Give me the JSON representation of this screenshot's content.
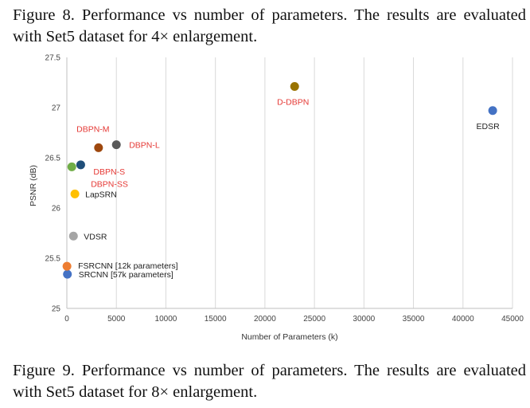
{
  "captions": {
    "top": "Figure 8. Performance vs number of parameters.  The results are evaluated with Set5 dataset for 4× enlargement.",
    "bottom": "Figure 9. Performance vs number of parameters.  The results are evaluated with Set5 dataset for 8× enlargement."
  },
  "chart_data": {
    "type": "scatter",
    "title": "",
    "xlabel": "Number of Parameters (k)",
    "ylabel": "PSNR (dB)",
    "xlim": [
      0,
      45000
    ],
    "ylim": [
      25,
      27.5
    ],
    "x_ticks": [
      "0",
      "5000",
      "10000",
      "15000",
      "20000",
      "25000",
      "30000",
      "35000",
      "40000",
      "45000"
    ],
    "y_ticks": [
      "25",
      "25.5",
      "26",
      "26.5",
      "27",
      "27.5"
    ],
    "grid": "vertical",
    "points": [
      {
        "label": "SRCNN [57k parameters]",
        "x": 57,
        "y": 25.34,
        "color": "#4472c4",
        "label_color": "#222222"
      },
      {
        "label": "FSRCNN [12k parameters]",
        "x": 12,
        "y": 25.42,
        "color": "#ed7d31",
        "label_color": "#222222"
      },
      {
        "label": "VDSR",
        "x": 665,
        "y": 25.72,
        "color": "#a5a5a5",
        "label_color": "#222222"
      },
      {
        "label": "LapSRN",
        "x": 813,
        "y": 26.14,
        "color": "#ffc000",
        "label_color": "#222222"
      },
      {
        "label": "DBPN-SS",
        "x": 500,
        "y": 26.41,
        "color": "#70ad47",
        "label_color": "#e53935"
      },
      {
        "label": "DBPN-S",
        "x": 1400,
        "y": 26.43,
        "color": "#1f4e79",
        "label_color": "#e53935"
      },
      {
        "label": "DBPN-M",
        "x": 3200,
        "y": 26.6,
        "color": "#9e480e",
        "label_color": "#e53935"
      },
      {
        "label": "DBPN-L",
        "x": 5000,
        "y": 26.63,
        "color": "#5a5a5a",
        "label_color": "#e53935"
      },
      {
        "label": "D-DBPN",
        "x": 23000,
        "y": 27.21,
        "color": "#997300",
        "label_color": "#e53935"
      },
      {
        "label": "EDSR",
        "x": 43000,
        "y": 26.97,
        "color": "#4472c4",
        "label_color": "#222222"
      }
    ]
  }
}
